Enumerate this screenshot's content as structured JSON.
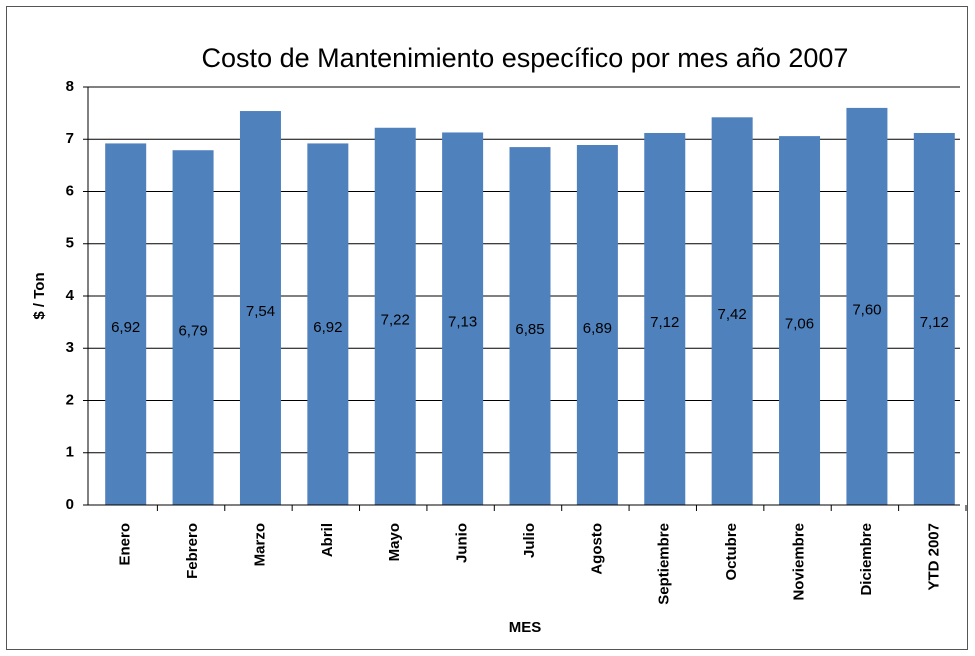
{
  "chart_data": {
    "type": "bar",
    "title": "Costo de Mantenimiento específico por mes año 2007",
    "x_label": "MES",
    "y_label": "$ / Ton",
    "categories": [
      "Enero",
      "Febrero",
      "Marzo",
      "Abril",
      "Mayo",
      "Junio",
      "Julio",
      "Agosto",
      "Septiembre",
      "Octubre",
      "Noviembre",
      "Diciembre",
      "YTD 2007"
    ],
    "values": [
      6.92,
      6.79,
      7.54,
      6.92,
      7.22,
      7.13,
      6.85,
      6.89,
      7.12,
      7.42,
      7.06,
      7.6,
      7.12
    ],
    "value_labels": [
      "6,92",
      "6,79",
      "7,54",
      "6,92",
      "7,22",
      "7,13",
      "6,85",
      "6,89",
      "7,12",
      "7,42",
      "7,06",
      "7,60",
      "7,12"
    ],
    "color": "#4f81bd",
    "ylim": [
      0,
      8
    ],
    "yticks": [
      0,
      1,
      2,
      3,
      4,
      5,
      6,
      7,
      8
    ],
    "grid": true
  }
}
